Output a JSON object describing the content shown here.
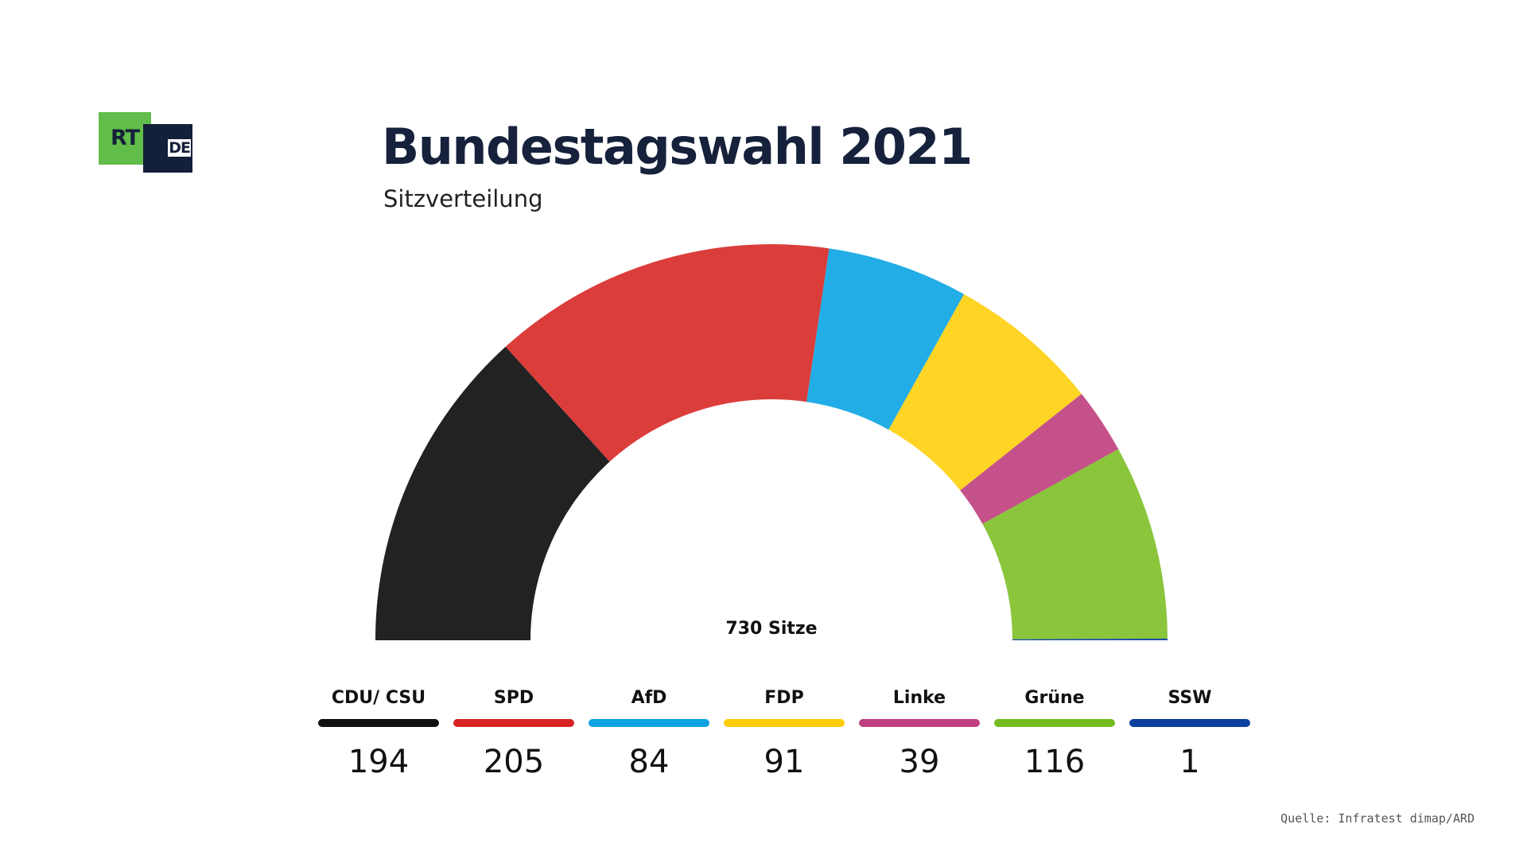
{
  "logo": {
    "primary": "RT",
    "secondary": "DE"
  },
  "header": {
    "title": "Bundestagswahl 2021",
    "subtitle": "Sitzverteilung"
  },
  "chart_data": {
    "type": "pie",
    "variant": "half-donut parliament",
    "title": "Bundestagswahl 2021",
    "subtitle": "Sitzverteilung",
    "total": 730,
    "total_label": "730 Sitze",
    "series": [
      {
        "name": "CDU/ CSU",
        "value": 194,
        "color": "#222222",
        "legend_color": "#111111"
      },
      {
        "name": "SPD",
        "value": 205,
        "color": "#db3d3b",
        "legend_color": "#d92323"
      },
      {
        "name": "AfD",
        "value": 84,
        "color": "#22ade6",
        "legend_color": "#0ea2e3"
      },
      {
        "name": "FDP",
        "value": 91,
        "color": "#fed425",
        "legend_color": "#fdcd08"
      },
      {
        "name": "Linke",
        "value": 39,
        "color": "#c5518a",
        "legend_color": "#bf3f7f"
      },
      {
        "name": "Grüne",
        "value": 116,
        "color": "#8ac53b",
        "legend_color": "#75bb1f"
      },
      {
        "name": "SSW",
        "value": 1,
        "color": "#1c4fa3",
        "legend_color": "#0c3fa0"
      }
    ]
  },
  "source": "Quelle: Infratest dimap/ARD"
}
